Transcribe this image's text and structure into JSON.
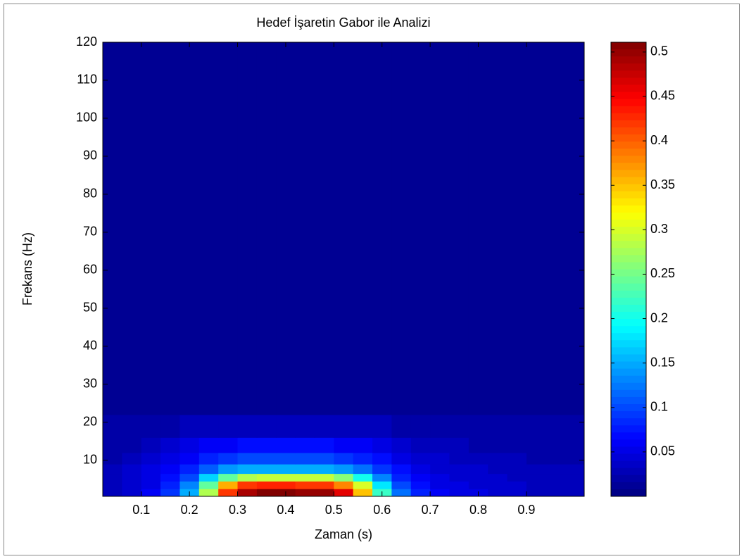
{
  "chart_data": {
    "type": "heatmap",
    "title": "Hedef İşaretin Gabor ile Analizi",
    "x_label": "Zaman (s)",
    "y_label": "Frekans (Hz)",
    "colormap": "jet",
    "xlim": [
      0.02,
      1.02
    ],
    "ylim": [
      0.5,
      120
    ],
    "clim": [
      0,
      0.511
    ],
    "xticks": [
      0.1,
      0.2,
      0.3,
      0.4,
      0.5,
      0.6,
      0.7,
      0.8,
      0.9
    ],
    "yticks": [
      10,
      20,
      30,
      40,
      50,
      60,
      70,
      80,
      90,
      100,
      110,
      120
    ],
    "cticks": [
      0.05,
      0.1,
      0.15,
      0.2,
      0.25,
      0.3,
      0.35,
      0.4,
      0.45,
      0.5
    ],
    "xbins": [
      0.02,
      0.06,
      0.1,
      0.14,
      0.18,
      0.22,
      0.26,
      0.3,
      0.34,
      0.38,
      0.42,
      0.46,
      0.5,
      0.54,
      0.58,
      0.62,
      0.66,
      0.7,
      0.74,
      0.78,
      0.82,
      0.86,
      0.9,
      0.94,
      0.98,
      1.02
    ],
    "ybins": [
      0.5,
      2.5,
      4.5,
      6.5,
      9,
      12,
      16,
      22,
      120
    ],
    "values": [
      [
        0.03,
        0.04,
        0.06,
        0.09,
        0.15,
        0.28,
        0.42,
        0.49,
        0.51,
        0.51,
        0.5,
        0.5,
        0.46,
        0.35,
        0.22,
        0.12,
        0.08,
        0.06,
        0.05,
        0.05,
        0.04,
        0.04,
        0.03,
        0.03,
        0.03
      ],
      [
        0.03,
        0.04,
        0.05,
        0.08,
        0.13,
        0.24,
        0.36,
        0.42,
        0.43,
        0.43,
        0.42,
        0.42,
        0.38,
        0.3,
        0.18,
        0.1,
        0.07,
        0.05,
        0.05,
        0.04,
        0.04,
        0.04,
        0.03,
        0.03,
        0.03
      ],
      [
        0.03,
        0.04,
        0.05,
        0.07,
        0.1,
        0.17,
        0.24,
        0.28,
        0.29,
        0.29,
        0.29,
        0.29,
        0.26,
        0.2,
        0.13,
        0.08,
        0.06,
        0.05,
        0.04,
        0.04,
        0.04,
        0.03,
        0.03,
        0.03,
        0.03
      ],
      [
        0.03,
        0.04,
        0.05,
        0.06,
        0.08,
        0.11,
        0.14,
        0.15,
        0.15,
        0.15,
        0.15,
        0.15,
        0.14,
        0.12,
        0.09,
        0.07,
        0.05,
        0.04,
        0.04,
        0.04,
        0.03,
        0.03,
        0.03,
        0.03,
        0.03
      ],
      [
        0.02,
        0.03,
        0.04,
        0.05,
        0.06,
        0.08,
        0.09,
        0.1,
        0.1,
        0.1,
        0.1,
        0.1,
        0.09,
        0.08,
        0.07,
        0.05,
        0.04,
        0.04,
        0.03,
        0.03,
        0.03,
        0.03,
        0.02,
        0.02,
        0.02
      ],
      [
        0.02,
        0.02,
        0.03,
        0.04,
        0.05,
        0.06,
        0.06,
        0.07,
        0.07,
        0.07,
        0.07,
        0.07,
        0.06,
        0.06,
        0.05,
        0.04,
        0.03,
        0.03,
        0.03,
        0.02,
        0.02,
        0.02,
        0.02,
        0.02,
        0.02
      ],
      [
        0.02,
        0.02,
        0.02,
        0.02,
        0.03,
        0.03,
        0.03,
        0.03,
        0.03,
        0.03,
        0.03,
        0.03,
        0.03,
        0.03,
        0.03,
        0.02,
        0.02,
        0.02,
        0.02,
        0.02,
        0.02,
        0.02,
        0.02,
        0.02,
        0.02
      ],
      [
        0.01,
        0.01,
        0.01,
        0.01,
        0.01,
        0.01,
        0.01,
        0.01,
        0.01,
        0.01,
        0.01,
        0.01,
        0.01,
        0.01,
        0.01,
        0.01,
        0.01,
        0.01,
        0.01,
        0.01,
        0.01,
        0.01,
        0.01,
        0.01,
        0.01
      ]
    ]
  }
}
